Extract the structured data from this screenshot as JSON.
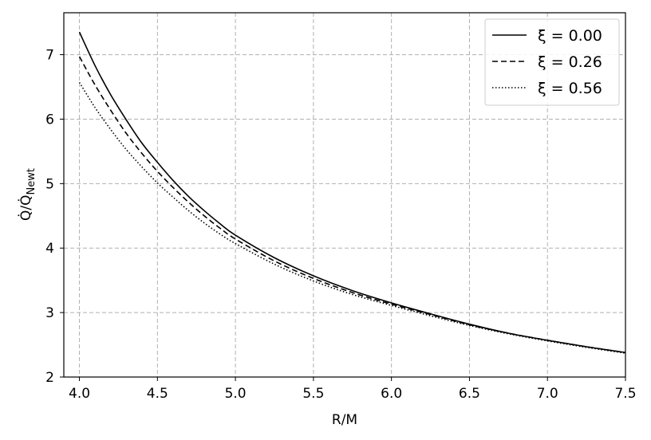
{
  "chart_data": {
    "type": "line",
    "title": "",
    "xlabel": "R/M",
    "ylabel": "Q̇/Q̇",
    "ylabel_sub": "Newt",
    "xlim": [
      3.9,
      7.5
    ],
    "ylim": [
      2.0,
      7.65
    ],
    "xticks": [
      4.0,
      4.5,
      5.0,
      5.5,
      6.0,
      6.5,
      7.0,
      7.5
    ],
    "xtick_labels": [
      "4.0",
      "4.5",
      "5.0",
      "5.5",
      "6.0",
      "6.5",
      "7.0",
      "7.5"
    ],
    "yticks": [
      2,
      3,
      4,
      5,
      6,
      7
    ],
    "ytick_labels": [
      "2",
      "3",
      "4",
      "5",
      "6",
      "7"
    ],
    "grid": true,
    "legend_position": "top-right",
    "series": [
      {
        "name": "ξ = 0.00",
        "linestyle": "solid",
        "color": "#000000",
        "x": [
          4.0,
          4.1,
          4.2,
          4.3,
          4.4,
          4.5,
          4.6,
          4.7,
          4.8,
          4.9,
          5.0,
          5.25,
          5.5,
          5.75,
          6.0,
          6.25,
          6.5,
          6.75,
          7.0,
          7.25,
          7.5
        ],
        "y": [
          7.35,
          6.83,
          6.38,
          5.99,
          5.63,
          5.33,
          5.05,
          4.8,
          4.58,
          4.38,
          4.2,
          3.85,
          3.57,
          3.34,
          3.15,
          2.98,
          2.82,
          2.68,
          2.57,
          2.47,
          2.38
        ]
      },
      {
        "name": "ξ = 0.26",
        "linestyle": "dashed",
        "color": "#000000",
        "x": [
          4.0,
          4.1,
          4.2,
          4.3,
          4.4,
          4.5,
          4.6,
          4.7,
          4.8,
          4.9,
          5.0,
          5.25,
          5.5,
          5.75,
          6.0,
          6.25,
          6.5,
          6.75,
          7.0,
          7.25,
          7.5
        ],
        "y": [
          6.97,
          6.53,
          6.14,
          5.78,
          5.47,
          5.19,
          4.94,
          4.71,
          4.5,
          4.31,
          4.14,
          3.8,
          3.53,
          3.31,
          3.13,
          2.97,
          2.81,
          2.68,
          2.57,
          2.47,
          2.38
        ]
      },
      {
        "name": "ξ = 0.56",
        "linestyle": "dotted",
        "color": "#000000",
        "x": [
          4.0,
          4.1,
          4.2,
          4.3,
          4.4,
          4.5,
          4.6,
          4.7,
          4.8,
          4.9,
          5.0,
          5.25,
          5.5,
          5.75,
          6.0,
          6.25,
          6.5,
          6.75,
          7.0,
          7.25,
          7.5
        ],
        "y": [
          6.57,
          6.18,
          5.84,
          5.53,
          5.26,
          5.01,
          4.79,
          4.58,
          4.39,
          4.22,
          4.07,
          3.75,
          3.49,
          3.28,
          3.11,
          2.95,
          2.8,
          2.67,
          2.56,
          2.46,
          2.37
        ]
      }
    ]
  },
  "colors": {
    "grid": "#b0b0b0",
    "axes": "#000000",
    "background": "#ffffff",
    "legend_border": "#cccccc"
  }
}
